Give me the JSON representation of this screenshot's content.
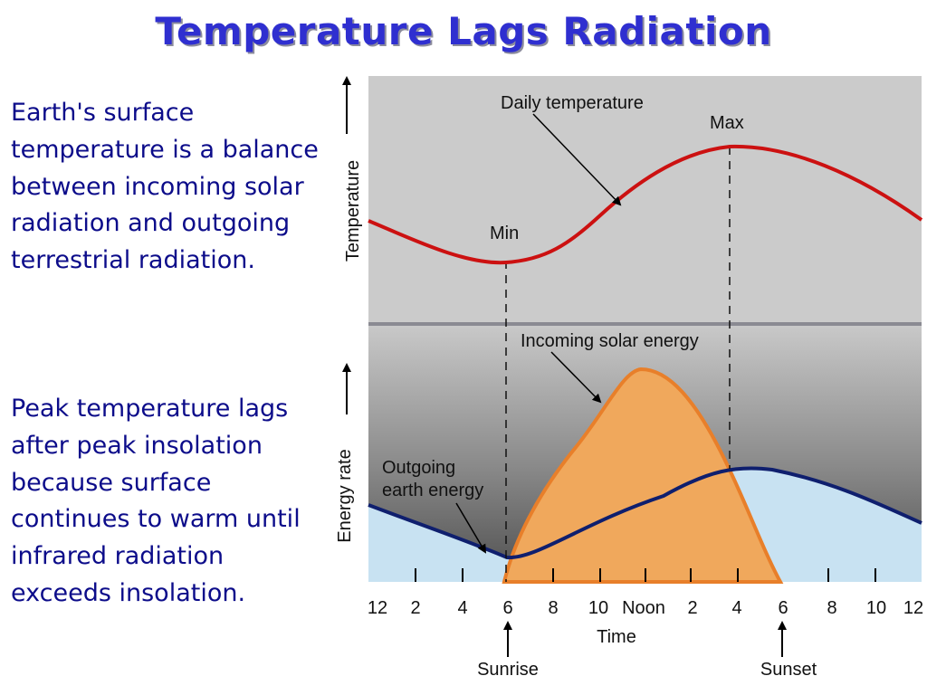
{
  "title": "Temperature Lags Radiation",
  "paragraphs": {
    "p1": "Earth's surface temperature is a balance between incoming solar radiation and outgoing terrestrial radiation.",
    "p2": "Peak temperature lags after peak insolation because surface continues to warm until infrared radiation exceeds insolation."
  },
  "diagram": {
    "labels": {
      "daily_temperature": "Daily temperature",
      "max": "Max",
      "min": "Min",
      "temperature_axis": "Temperature",
      "energy_axis": "Energy rate",
      "incoming_solar": "Incoming solar energy",
      "outgoing_line1": "Outgoing",
      "outgoing_line2": "earth energy",
      "time": "Time",
      "sunrise": "Sunrise",
      "sunset": "Sunset"
    },
    "hour_ticks": [
      "12",
      "2",
      "4",
      "6",
      "8",
      "10",
      "Noon",
      "2",
      "4",
      "6",
      "8",
      "10",
      "12"
    ],
    "colors": {
      "temperature_curve": "#cc1111",
      "incoming_fill": "#f0a85c",
      "incoming_stroke": "#e87f2a",
      "outgoing_fill": "#c8e2f2",
      "outgoing_stroke": "#0f1f6e",
      "panel_gray": "#cbcbcb",
      "title_blue": "#2f2fd0",
      "text_navy": "#0c0c8a"
    }
  }
}
